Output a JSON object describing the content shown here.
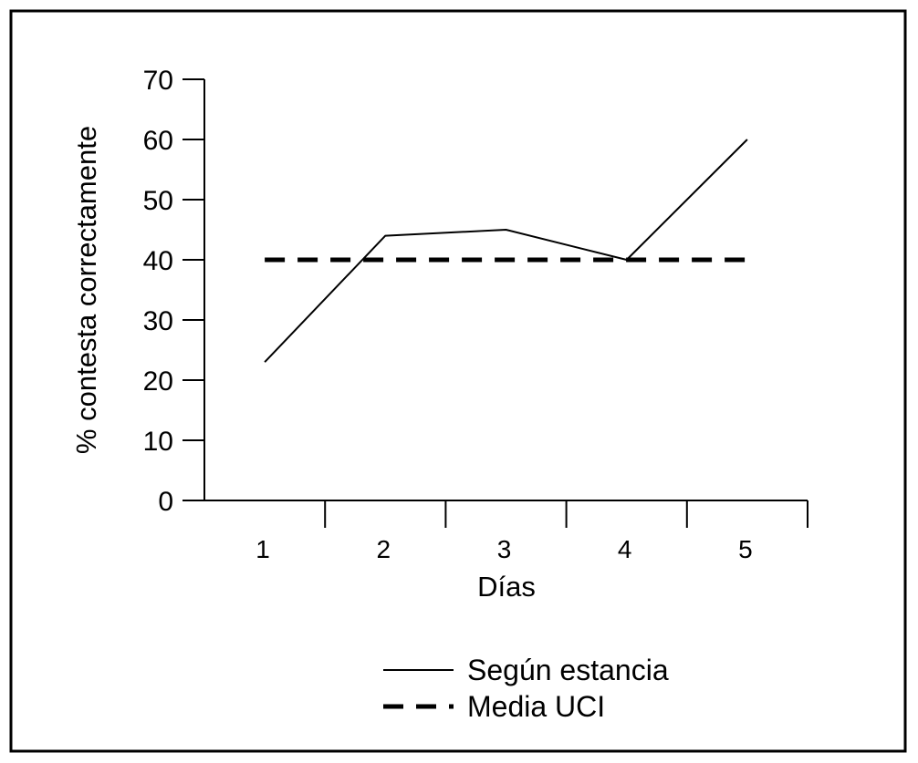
{
  "chart_data": {
    "type": "line",
    "title": "",
    "xlabel": "Días",
    "ylabel": "% contesta correctamente",
    "categories": [
      "1",
      "2",
      "3",
      "4",
      "5"
    ],
    "ylim": [
      0,
      70
    ],
    "yticks": [
      "0",
      "10",
      "20",
      "30",
      "40",
      "50",
      "60",
      "70"
    ],
    "grid": false,
    "legend_position": "bottom-center",
    "series": [
      {
        "name": "Según estancia",
        "values": [
          23,
          44,
          45,
          40,
          60
        ],
        "style": "solid",
        "color": "#000000"
      },
      {
        "name": "Media UCI",
        "values": [
          40,
          40,
          40,
          40,
          40
        ],
        "style": "dashed",
        "color": "#000000"
      }
    ]
  }
}
